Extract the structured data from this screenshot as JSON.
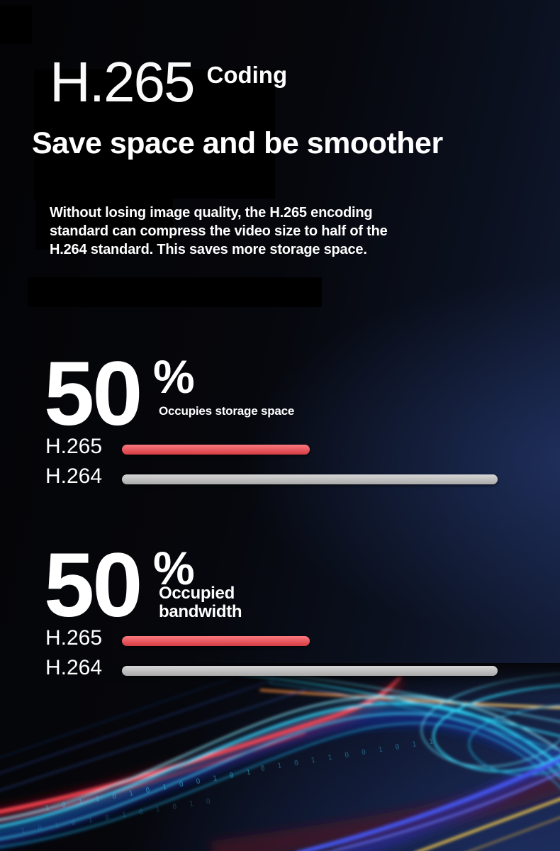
{
  "title_block": {
    "title": "H.265",
    "suffix": "Coding",
    "subtitle": "Save space and be smoother",
    "paragraph_lines": [
      "Without losing image quality, the H.265 encoding",
      "standard can compress the video size to half of the",
      "H.264 standard. This saves more storage space."
    ]
  },
  "chart_data": [
    {
      "type": "bar",
      "orientation": "horizontal",
      "title": "Occupies storage space",
      "headline": "50",
      "headline_unit": "%",
      "caption_lines": [
        "Occupies storage space"
      ],
      "categories": [
        "H.265",
        "H.264"
      ],
      "values": [
        50,
        100
      ],
      "xlim": [
        0,
        100
      ],
      "unit": "%",
      "bar_colors": [
        "#f8464e",
        "#c6c6c6"
      ],
      "legend": "none",
      "grid": false
    },
    {
      "type": "bar",
      "orientation": "horizontal",
      "title": "Occupied bandwidth",
      "headline": "50",
      "headline_unit": "%",
      "caption_lines": [
        "Occupied",
        "bandwidth"
      ],
      "categories": [
        "H.265",
        "H.264"
      ],
      "values": [
        50,
        100
      ],
      "xlim": [
        0,
        100
      ],
      "unit": "%",
      "bar_colors": [
        "#f8464e",
        "#c6c6c6"
      ],
      "legend": "none",
      "grid": false
    }
  ],
  "decor": {
    "binary_rows": [
      "1 0 1 1 0 1 0 1 0 0 1 0 1",
      "0 1 0 1 1 0 0 1 0 1 1",
      "1 0 1 0 1 0 1 0 1 0 1 0"
    ]
  },
  "colors": {
    "accent_red": "#f8464e",
    "bar_gray": "#c6c6c6",
    "trail_cyan": "#2fd4f4",
    "trail_blue": "#4556f0",
    "trail_yellow": "#ffd34d",
    "trail_red": "#ff4453"
  }
}
